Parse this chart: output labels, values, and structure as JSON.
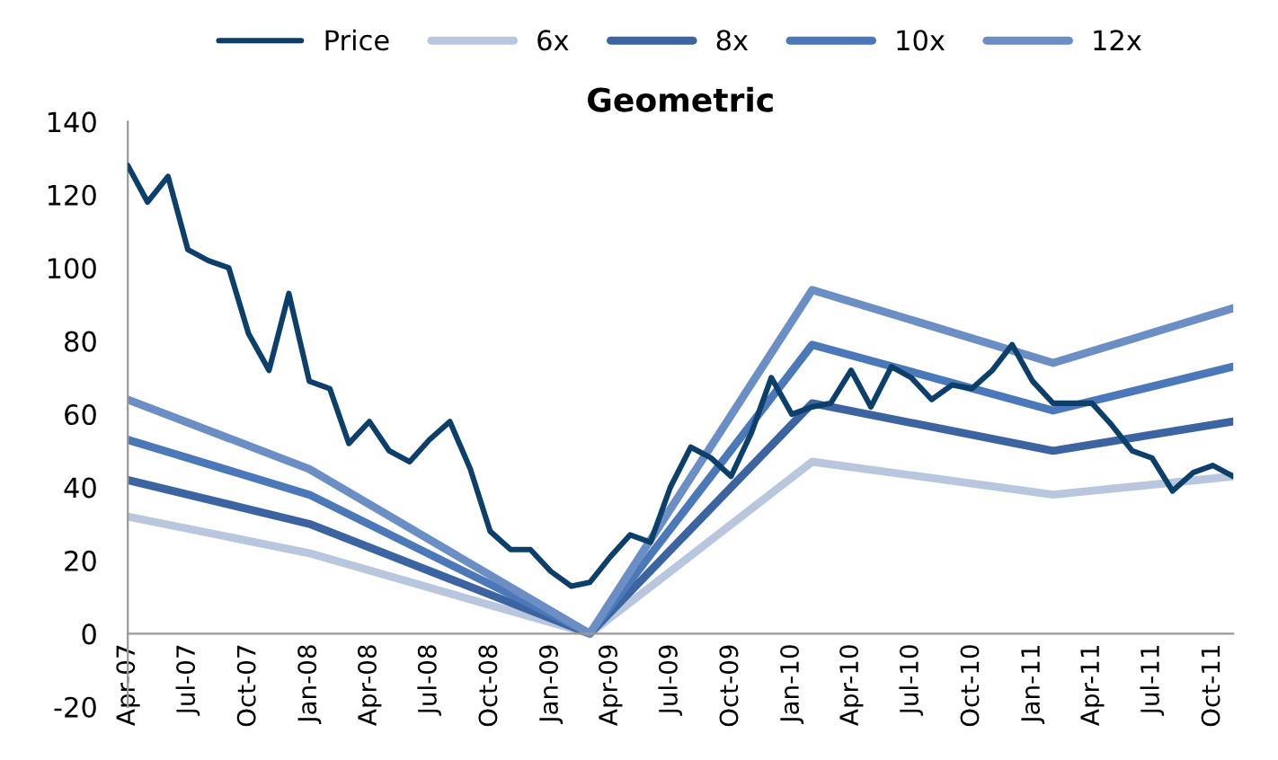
{
  "chart_data": {
    "type": "line",
    "title": "Geometric",
    "x": [
      "2007-04",
      "2007-05",
      "2007-06",
      "2007-07",
      "2007-08",
      "2007-09",
      "2007-10",
      "2007-11",
      "2007-12",
      "2008-01",
      "2008-02",
      "2008-03",
      "2008-04",
      "2008-05",
      "2008-06",
      "2008-07",
      "2008-08",
      "2008-09",
      "2008-10",
      "2008-11",
      "2008-12",
      "2009-01",
      "2009-02",
      "2009-03",
      "2009-04",
      "2009-05",
      "2009-06",
      "2009-07",
      "2009-08",
      "2009-09",
      "2009-10",
      "2009-11",
      "2009-12",
      "2010-01",
      "2010-02",
      "2010-03",
      "2010-04",
      "2010-05",
      "2010-06",
      "2010-07",
      "2010-08",
      "2010-09",
      "2010-10",
      "2010-11",
      "2010-12",
      "2011-01",
      "2011-02",
      "2011-03",
      "2011-04",
      "2011-05",
      "2011-06",
      "2011-07",
      "2011-08",
      "2011-09",
      "2011-10",
      "2011-11"
    ],
    "series": [
      {
        "name": "Price",
        "color": "#0d3f6b",
        "values": [
          128,
          118,
          125,
          105,
          102,
          100,
          82,
          72,
          93,
          69,
          67,
          52,
          58,
          50,
          47,
          53,
          58,
          45,
          28,
          23,
          23,
          17,
          13,
          14,
          21,
          27,
          25,
          40,
          51,
          48,
          43,
          55,
          70,
          60,
          62,
          63,
          72,
          62,
          73,
          70,
          64,
          68,
          67,
          72,
          79,
          69,
          63,
          63,
          63,
          57,
          50,
          48,
          39,
          44,
          46,
          43
        ]
      },
      {
        "name": "6x",
        "color": "#b8c7de",
        "x": [
          "2007-04",
          "2008-01",
          "2009-03",
          "2010-02",
          "2011-02",
          "2011-11"
        ],
        "values": [
          32,
          22,
          0,
          47,
          38,
          43
        ]
      },
      {
        "name": "8x",
        "color": "#3b64a0",
        "x": [
          "2007-04",
          "2008-01",
          "2009-03",
          "2010-02",
          "2011-02",
          "2011-11"
        ],
        "values": [
          42,
          30,
          0,
          63,
          50,
          58
        ]
      },
      {
        "name": "10x",
        "color": "#4a78b8",
        "x": [
          "2007-04",
          "2008-01",
          "2009-03",
          "2010-02",
          "2011-02",
          "2011-11"
        ],
        "values": [
          53,
          38,
          0,
          79,
          61,
          73
        ]
      },
      {
        "name": "12x",
        "color": "#6b8fc4",
        "x": [
          "2007-04",
          "2008-01",
          "2009-03",
          "2010-02",
          "2011-02",
          "2011-11"
        ],
        "values": [
          64,
          45,
          0,
          94,
          74,
          89
        ]
      }
    ],
    "xlim": [
      "2007-04",
      "2011-11"
    ],
    "xticks": [
      {
        "value": "2007-04",
        "label": "Apr-07"
      },
      {
        "value": "2007-07",
        "label": "Jul-07"
      },
      {
        "value": "2007-10",
        "label": "Oct-07"
      },
      {
        "value": "2008-01",
        "label": "Jan-08"
      },
      {
        "value": "2008-04",
        "label": "Apr-08"
      },
      {
        "value": "2008-07",
        "label": "Jul-08"
      },
      {
        "value": "2008-10",
        "label": "Oct-08"
      },
      {
        "value": "2009-01",
        "label": "Jan-09"
      },
      {
        "value": "2009-04",
        "label": "Apr-09"
      },
      {
        "value": "2009-07",
        "label": "Jul-09"
      },
      {
        "value": "2009-10",
        "label": "Oct-09"
      },
      {
        "value": "2010-01",
        "label": "Jan-10"
      },
      {
        "value": "2010-04",
        "label": "Apr-10"
      },
      {
        "value": "2010-07",
        "label": "Jul-10"
      },
      {
        "value": "2010-10",
        "label": "Oct-10"
      },
      {
        "value": "2011-01",
        "label": "Jan-11"
      },
      {
        "value": "2011-04",
        "label": "Apr-11"
      },
      {
        "value": "2011-07",
        "label": "Jul-11"
      },
      {
        "value": "2011-10",
        "label": "Oct-11"
      }
    ],
    "ylim": [
      -20,
      140
    ],
    "yticks": [
      -20,
      0,
      20,
      40,
      60,
      80,
      100,
      120,
      140
    ],
    "grid": false,
    "legend": "top",
    "marker": "none",
    "line_style": "solid"
  }
}
